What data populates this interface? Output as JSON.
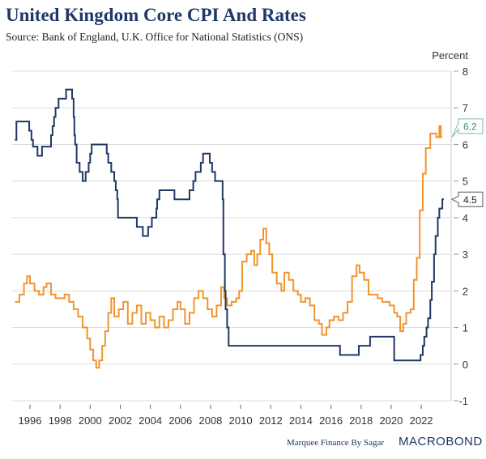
{
  "title": "United Kingdom Core CPI And Rates",
  "subtitle": "Source: Bank of England, U.K. Office for National Statistics (ONS)",
  "credit": "Marquee Finance By Sagar",
  "logo": "MACROBOND",
  "chart_data": {
    "type": "line",
    "ylabel": "Percent",
    "ylim": [
      -1,
      8
    ],
    "xlim": [
      1995,
      2023.9
    ],
    "yticks": [
      "8",
      "7",
      "6",
      "5",
      "4",
      "3",
      "2",
      "1",
      "0",
      "-1"
    ],
    "xticks": [
      "1996",
      "1998",
      "2000",
      "2002",
      "2004",
      "2006",
      "2008",
      "2010",
      "2012",
      "2014",
      "2016",
      "2018",
      "2020",
      "2022"
    ],
    "grid": true,
    "series": [
      {
        "color": "#f0952e",
        "last_label": "6.2",
        "step": true,
        "x": [
          1995.0,
          1995.3,
          1995.6,
          1995.8,
          1996.0,
          1996.3,
          1996.6,
          1996.9,
          1997.1,
          1997.4,
          1997.7,
          1998.0,
          1998.3,
          1998.6,
          1998.9,
          1999.2,
          1999.5,
          1999.8,
          2000.0,
          2000.2,
          2000.4,
          2000.6,
          2000.8,
          2001.0,
          2001.2,
          2001.4,
          2001.6,
          2001.9,
          2002.2,
          2002.5,
          2002.8,
          2003.1,
          2003.4,
          2003.7,
          2004.0,
          2004.3,
          2004.6,
          2004.9,
          2005.2,
          2005.5,
          2005.8,
          2006.0,
          2006.3,
          2006.6,
          2006.9,
          2007.2,
          2007.5,
          2007.8,
          2008.1,
          2008.4,
          2008.7,
          2008.9,
          2009.1,
          2009.4,
          2009.7,
          2009.9,
          2010.1,
          2010.4,
          2010.7,
          2010.9,
          2011.1,
          2011.3,
          2011.5,
          2011.7,
          2011.9,
          2012.1,
          2012.4,
          2012.7,
          2012.9,
          2013.2,
          2013.5,
          2013.8,
          2014.0,
          2014.3,
          2014.6,
          2014.9,
          2015.2,
          2015.4,
          2015.7,
          2015.9,
          2016.2,
          2016.5,
          2016.8,
          2017.1,
          2017.4,
          2017.7,
          2017.9,
          2018.2,
          2018.5,
          2018.8,
          2019.1,
          2019.4,
          2019.7,
          2019.9,
          2020.2,
          2020.4,
          2020.6,
          2020.8,
          2021.0,
          2021.3,
          2021.5,
          2021.7,
          2021.9,
          2022.1,
          2022.3,
          2022.6,
          2022.8,
          2023.0,
          2023.2,
          2023.3
        ],
        "y": [
          1.7,
          1.9,
          2.2,
          2.4,
          2.2,
          2.0,
          1.9,
          2.1,
          2.2,
          1.9,
          1.8,
          1.8,
          1.9,
          1.7,
          1.5,
          1.3,
          1.0,
          0.7,
          0.4,
          0.1,
          -0.1,
          0.1,
          0.5,
          0.9,
          1.4,
          1.8,
          1.3,
          1.5,
          1.7,
          1.1,
          1.4,
          1.6,
          1.1,
          1.4,
          1.2,
          1.0,
          1.3,
          1.0,
          1.2,
          1.5,
          1.7,
          1.5,
          1.1,
          1.4,
          1.8,
          2.0,
          1.8,
          1.5,
          1.3,
          1.6,
          2.1,
          1.8,
          1.6,
          1.7,
          1.8,
          2.0,
          2.8,
          3.0,
          3.1,
          2.7,
          3.0,
          3.4,
          3.7,
          3.3,
          3.0,
          2.5,
          2.2,
          2.0,
          2.5,
          2.3,
          2.0,
          1.9,
          1.7,
          1.8,
          1.6,
          1.2,
          1.1,
          0.8,
          1.0,
          1.2,
          1.3,
          1.2,
          1.4,
          1.7,
          2.4,
          2.7,
          2.5,
          2.3,
          1.9,
          1.9,
          1.8,
          1.7,
          1.7,
          1.6,
          1.4,
          1.3,
          0.9,
          1.1,
          1.4,
          1.5,
          2.3,
          2.9,
          4.2,
          5.2,
          5.9,
          6.3,
          6.3,
          6.2,
          6.5,
          6.2
        ]
      },
      {
        "color": "#1f3864",
        "last_label": "4.5",
        "step": true,
        "x": [
          1995.0,
          1995.1,
          1995.95,
          1996.1,
          1996.2,
          1996.5,
          1996.8,
          1997.4,
          1997.5,
          1997.6,
          1997.7,
          1997.9,
          1998.4,
          1998.8,
          1998.9,
          1998.95,
          1999.0,
          1999.1,
          1999.3,
          1999.5,
          1999.7,
          1999.9,
          2000.0,
          2000.1,
          2001.1,
          2001.2,
          2001.4,
          2001.6,
          2001.7,
          2001.8,
          2001.85,
          2003.1,
          2003.5,
          2003.85,
          2004.1,
          2004.4,
          2004.45,
          2004.6,
          2005.6,
          2006.6,
          2006.85,
          2007.0,
          2007.35,
          2007.5,
          2007.95,
          2008.1,
          2008.3,
          2008.8,
          2008.85,
          2008.95,
          2009.0,
          2009.1,
          2009.2,
          2016.6,
          2017.85,
          2018.6,
          2020.2,
          2021.95,
          2022.1,
          2022.2,
          2022.35,
          2022.45,
          2022.6,
          2022.7,
          2022.85,
          2022.95,
          2023.1,
          2023.2,
          2023.4
        ],
        "y": [
          6.125,
          6.625,
          6.375,
          6.125,
          5.94,
          5.69,
          5.94,
          6.25,
          6.5,
          6.75,
          7.0,
          7.25,
          7.5,
          7.25,
          6.75,
          6.25,
          6.0,
          5.5,
          5.25,
          5.0,
          5.25,
          5.5,
          5.75,
          6.0,
          5.75,
          5.5,
          5.25,
          5.0,
          4.75,
          4.5,
          4.0,
          3.75,
          3.5,
          3.75,
          4.0,
          4.25,
          4.5,
          4.75,
          4.5,
          4.75,
          5.0,
          5.25,
          5.5,
          5.75,
          5.5,
          5.25,
          5.0,
          4.5,
          3.0,
          2.0,
          1.5,
          1.0,
          0.5,
          0.25,
          0.5,
          0.75,
          0.1,
          0.25,
          0.5,
          0.75,
          1.0,
          1.25,
          1.75,
          2.25,
          3.0,
          3.5,
          4.0,
          4.25,
          4.5
        ]
      }
    ]
  }
}
